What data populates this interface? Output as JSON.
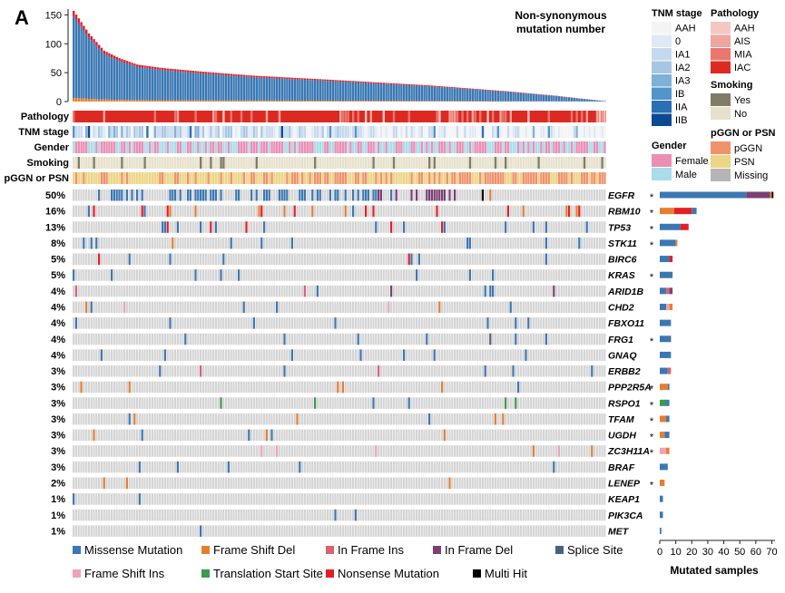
{
  "panel_label": "A",
  "chart_data": {
    "type": "oncoplot",
    "title": "Non-synonymous mutation number",
    "title_lines": [
      "Non-synonymous",
      "mutation number"
    ],
    "tmb_axis": {
      "ticks": [
        0,
        50,
        100,
        150
      ],
      "ylim": [
        0,
        160
      ]
    },
    "tmb_profile_points": [
      [
        0,
        157
      ],
      [
        6,
        118
      ],
      [
        12,
        88
      ],
      [
        18,
        75
      ],
      [
        25,
        64
      ],
      [
        35,
        58
      ],
      [
        50,
        52
      ],
      [
        70,
        45
      ],
      [
        100,
        38
      ],
      [
        140,
        28
      ],
      [
        170,
        18
      ],
      [
        190,
        10
      ],
      [
        200,
        5
      ],
      [
        209,
        1
      ]
    ],
    "tmb_missense_fraction": 0.9,
    "sample_count": 210,
    "track_labels": [
      "Pathology",
      "TNM stage",
      "Gender",
      "Smoking",
      "pGGN or PSN"
    ],
    "genes": [
      "EGFR",
      "RBM10",
      "TP53",
      "STK11",
      "BIRC6",
      "KRAS",
      "ARID1B",
      "CHD2",
      "FBXO11",
      "FRG1",
      "GNAQ",
      "ERBB2",
      "PPP2R5A",
      "RSPO1",
      "TFAM",
      "UGDH",
      "ZC3H11A",
      "BRAF",
      "LENEP",
      "KEAP1",
      "PIK3CA",
      "MET"
    ],
    "percentages": [
      "50%",
      "16%",
      "13%",
      "8%",
      "5%",
      "5%",
      "4%",
      "4%",
      "4%",
      "4%",
      "4%",
      "3%",
      "3%",
      "3%",
      "3%",
      "3%",
      "3%",
      "3%",
      "2%",
      "1%",
      "1%",
      "1%"
    ],
    "significant": [
      true,
      true,
      true,
      true,
      false,
      true,
      false,
      false,
      false,
      true,
      false,
      false,
      true,
      true,
      true,
      true,
      true,
      false,
      true,
      false,
      false,
      false
    ],
    "mutated_samples": [
      {
        "gene": "EGFR",
        "counts": {
          "Missense Mutation": 54,
          "In Frame Del": 15,
          "Frame Shift Del": 1,
          "Multi Hit": 1
        }
      },
      {
        "gene": "RBM10",
        "counts": {
          "Frame Shift Del": 9,
          "Nonsense Mutation": 11,
          "Missense Mutation": 3
        }
      },
      {
        "gene": "TP53",
        "counts": {
          "Missense Mutation": 13,
          "Nonsense Mutation": 5
        }
      },
      {
        "gene": "STK11",
        "counts": {
          "Missense Mutation": 10,
          "Frame Shift Del": 1
        }
      },
      {
        "gene": "BIRC6",
        "counts": {
          "Missense Mutation": 6,
          "Nonsense Mutation": 2
        }
      },
      {
        "gene": "KRAS",
        "counts": {
          "Missense Mutation": 8
        }
      },
      {
        "gene": "ARID1B",
        "counts": {
          "Missense Mutation": 4,
          "In Frame Ins": 2,
          "In Frame Del": 2
        }
      },
      {
        "gene": "CHD2",
        "counts": {
          "Missense Mutation": 4,
          "Frame Shift Ins": 2,
          "Frame Shift Del": 2
        }
      },
      {
        "gene": "FBXO11",
        "counts": {
          "Missense Mutation": 7
        }
      },
      {
        "gene": "FRG1",
        "counts": {
          "Missense Mutation": 6,
          "Splice Site": 1
        }
      },
      {
        "gene": "GNAQ",
        "counts": {
          "Missense Mutation": 7
        }
      },
      {
        "gene": "ERBB2",
        "counts": {
          "Missense Mutation": 5,
          "In Frame Ins": 2
        }
      },
      {
        "gene": "PPP2R5A",
        "counts": {
          "Frame Shift Del": 5,
          "Missense Mutation": 1
        }
      },
      {
        "gene": "RSPO1",
        "counts": {
          "Translation Start Site": 4,
          "Missense Mutation": 2
        }
      },
      {
        "gene": "TFAM",
        "counts": {
          "Frame Shift Del": 4,
          "Missense Mutation": 2
        }
      },
      {
        "gene": "UGDH",
        "counts": {
          "Frame Shift Del": 3,
          "Missense Mutation": 3
        }
      },
      {
        "gene": "ZC3H11A",
        "counts": {
          "Frame Shift Ins": 4,
          "Frame Shift Del": 2
        }
      },
      {
        "gene": "BRAF",
        "counts": {
          "Missense Mutation": 5
        }
      },
      {
        "gene": "LENEP",
        "counts": {
          "Frame Shift Del": 3
        }
      },
      {
        "gene": "KEAP1",
        "counts": {
          "Missense Mutation": 2
        }
      },
      {
        "gene": "PIK3CA",
        "counts": {
          "Missense Mutation": 2
        }
      },
      {
        "gene": "MET",
        "counts": {
          "Missense Mutation": 1
        }
      }
    ],
    "barplot_axis": {
      "ticks": [
        0,
        10,
        20,
        30,
        40,
        50,
        60,
        70
      ],
      "xlim": [
        0,
        72
      ],
      "label": "Mutated samples"
    },
    "variant_classes": [
      {
        "name": "Missense Mutation",
        "color": "#3a78b3"
      },
      {
        "name": "Frame Shift Del",
        "color": "#e67e30"
      },
      {
        "name": "In Frame Ins",
        "color": "#d8646e"
      },
      {
        "name": "In Frame Del",
        "color": "#7b3f74"
      },
      {
        "name": "Splice Site",
        "color": "#47637f"
      },
      {
        "name": "Frame Shift Ins",
        "color": "#f0a3b5"
      },
      {
        "name": "Translation Start Site",
        "color": "#3c9a4b"
      },
      {
        "name": "Nonsense Mutation",
        "color": "#e41d25"
      },
      {
        "name": "Multi Hit",
        "color": "#000000"
      }
    ],
    "legends": {
      "tnm_stage": {
        "title": "TNM stage",
        "items": [
          {
            "label": "AAH",
            "color": "#f4f4f4"
          },
          {
            "label": "0",
            "color": "#dfe9f5"
          },
          {
            "label": "IA1",
            "color": "#c5d9ee"
          },
          {
            "label": "IA2",
            "color": "#a6c7e3"
          },
          {
            "label": "IA3",
            "color": "#7fb0d7"
          },
          {
            "label": "IB",
            "color": "#5394c9"
          },
          {
            "label": "IIA",
            "color": "#2a70b2"
          },
          {
            "label": "IIB",
            "color": "#0b4a93"
          }
        ]
      },
      "pathology": {
        "title": "Pathology",
        "items": [
          {
            "label": "AAH",
            "color": "#f5c7c3"
          },
          {
            "label": "AIS",
            "color": "#f0a49e"
          },
          {
            "label": "MIA",
            "color": "#e8776f"
          },
          {
            "label": "IAC",
            "color": "#dc2a22"
          }
        ]
      },
      "smoking": {
        "title": "Smoking",
        "items": [
          {
            "label": "Yes",
            "color": "#7f7c67"
          },
          {
            "label": "No",
            "color": "#e7e1cc"
          }
        ]
      },
      "gender": {
        "title": "Gender",
        "items": [
          {
            "label": "Female",
            "color": "#ea8fb3"
          },
          {
            "label": "Male",
            "color": "#a9dcec"
          }
        ]
      },
      "lesion": {
        "title": "pGGN or PSN",
        "items": [
          {
            "label": "pGGN",
            "color": "#f0926a"
          },
          {
            "label": "PSN",
            "color": "#ecd586"
          },
          {
            "label": "Missing",
            "color": "#b5b5b5"
          }
        ]
      }
    }
  }
}
